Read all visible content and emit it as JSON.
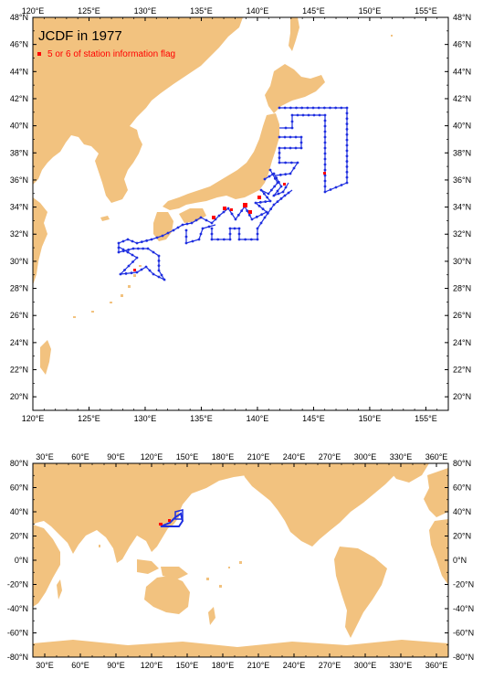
{
  "colors": {
    "land": "#f2c27f",
    "ocean": "#ffffff",
    "track": "#1f2fe0",
    "flag": "#ff0000"
  },
  "top_map": {
    "title": "JCDF in 1977",
    "legend_label": "5 or 6 of station information flag",
    "lon_ticks": [
      "120°E",
      "125°E",
      "130°E",
      "135°E",
      "140°E",
      "145°E",
      "150°E",
      "155°E"
    ],
    "lat_ticks": [
      "48°N",
      "46°N",
      "44°N",
      "42°N",
      "40°N",
      "38°N",
      "36°N",
      "34°N",
      "32°N",
      "30°N",
      "28°N",
      "26°N",
      "24°N",
      "22°N",
      "20°N"
    ],
    "lon_range": [
      120,
      157
    ],
    "lat_range": [
      19,
      48
    ]
  },
  "bottom_map": {
    "lon_ticks": [
      "30°E",
      "60°E",
      "90°E",
      "120°E",
      "150°E",
      "180°E",
      "210°E",
      "240°E",
      "270°E",
      "300°E",
      "330°E",
      "360°E"
    ],
    "lat_ticks": [
      "80°N",
      "60°N",
      "40°N",
      "20°N",
      "0°N",
      "-20°N",
      "-40°N",
      "-60°N",
      "-80°N"
    ],
    "lon_range": [
      20,
      370
    ],
    "lat_range": [
      -80,
      80
    ]
  }
}
